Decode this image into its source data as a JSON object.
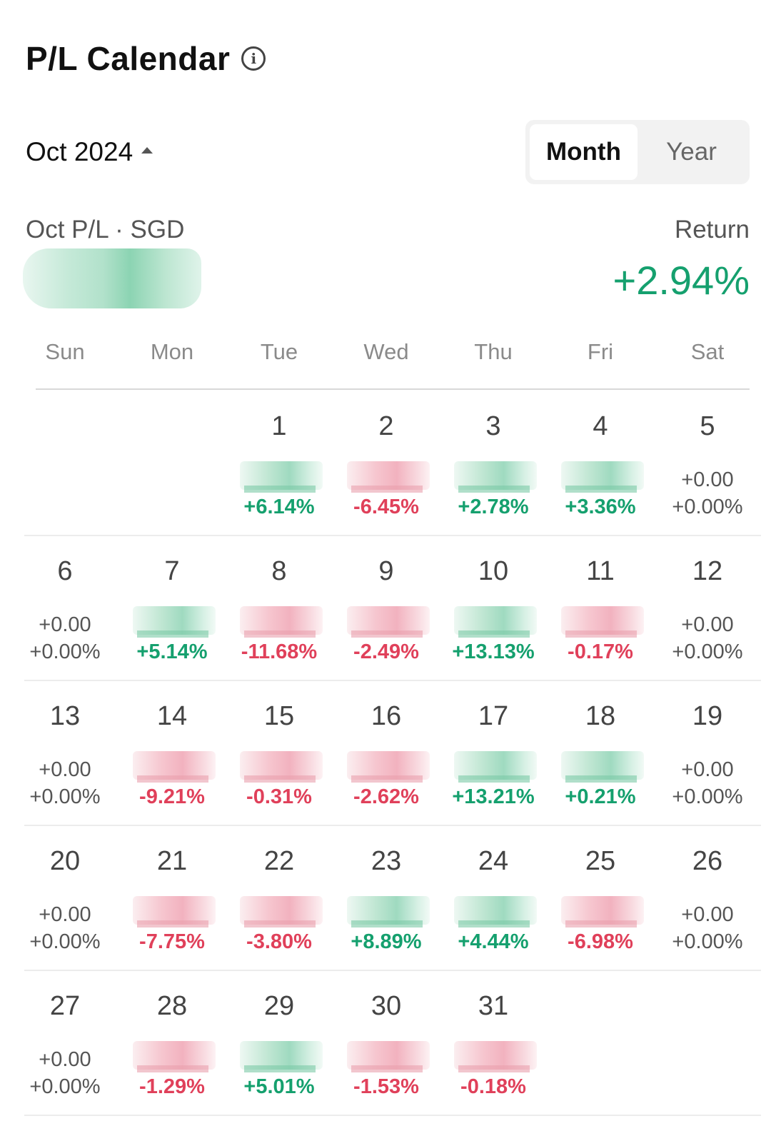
{
  "header": {
    "title": "P/L Calendar",
    "info_icon": "info-icon"
  },
  "controls": {
    "month_label": "Oct 2024",
    "toggle": {
      "month": "Month",
      "year": "Year",
      "selected": "Month"
    }
  },
  "summary": {
    "pl_label": "Oct P/L · SGD",
    "return_label": "Return",
    "return_value": "+2.94%"
  },
  "colors": {
    "positive": "#15a06e",
    "negative": "#e0405a",
    "neutral": "#555555"
  },
  "weekdays": [
    "Sun",
    "Mon",
    "Tue",
    "Wed",
    "Thu",
    "Fri",
    "Sat"
  ],
  "weeks": [
    [
      null,
      null,
      {
        "day": "1",
        "amount": "",
        "pct": "+6.14%",
        "trend": "pos"
      },
      {
        "day": "2",
        "amount": "",
        "pct": "-6.45%",
        "trend": "neg"
      },
      {
        "day": "3",
        "amount": "",
        "pct": "+2.78%",
        "trend": "pos"
      },
      {
        "day": "4",
        "amount": "",
        "pct": "+3.36%",
        "trend": "pos"
      },
      {
        "day": "5",
        "amount": "+0.00",
        "pct": "+0.00%",
        "trend": "zero"
      }
    ],
    [
      {
        "day": "6",
        "amount": "+0.00",
        "pct": "+0.00%",
        "trend": "zero"
      },
      {
        "day": "7",
        "amount": "",
        "pct": "+5.14%",
        "trend": "pos"
      },
      {
        "day": "8",
        "amount": "",
        "pct": "-11.68%",
        "trend": "neg"
      },
      {
        "day": "9",
        "amount": "",
        "pct": "-2.49%",
        "trend": "neg"
      },
      {
        "day": "10",
        "amount": "",
        "pct": "+13.13%",
        "trend": "pos"
      },
      {
        "day": "11",
        "amount": "",
        "pct": "-0.17%",
        "trend": "neg"
      },
      {
        "day": "12",
        "amount": "+0.00",
        "pct": "+0.00%",
        "trend": "zero"
      }
    ],
    [
      {
        "day": "13",
        "amount": "+0.00",
        "pct": "+0.00%",
        "trend": "zero"
      },
      {
        "day": "14",
        "amount": "",
        "pct": "-9.21%",
        "trend": "neg"
      },
      {
        "day": "15",
        "amount": "",
        "pct": "-0.31%",
        "trend": "neg"
      },
      {
        "day": "16",
        "amount": "",
        "pct": "-2.62%",
        "trend": "neg"
      },
      {
        "day": "17",
        "amount": "",
        "pct": "+13.21%",
        "trend": "pos"
      },
      {
        "day": "18",
        "amount": "",
        "pct": "+0.21%",
        "trend": "pos"
      },
      {
        "day": "19",
        "amount": "+0.00",
        "pct": "+0.00%",
        "trend": "zero"
      }
    ],
    [
      {
        "day": "20",
        "amount": "+0.00",
        "pct": "+0.00%",
        "trend": "zero"
      },
      {
        "day": "21",
        "amount": "",
        "pct": "-7.75%",
        "trend": "neg"
      },
      {
        "day": "22",
        "amount": "",
        "pct": "-3.80%",
        "trend": "neg"
      },
      {
        "day": "23",
        "amount": "",
        "pct": "+8.89%",
        "trend": "pos"
      },
      {
        "day": "24",
        "amount": "",
        "pct": "+4.44%",
        "trend": "pos"
      },
      {
        "day": "25",
        "amount": "",
        "pct": "-6.98%",
        "trend": "neg"
      },
      {
        "day": "26",
        "amount": "+0.00",
        "pct": "+0.00%",
        "trend": "zero"
      }
    ],
    [
      {
        "day": "27",
        "amount": "+0.00",
        "pct": "+0.00%",
        "trend": "zero"
      },
      {
        "day": "28",
        "amount": "",
        "pct": "-1.29%",
        "trend": "neg"
      },
      {
        "day": "29",
        "amount": "",
        "pct": "+5.01%",
        "trend": "pos"
      },
      {
        "day": "30",
        "amount": "",
        "pct": "-1.53%",
        "trend": "neg"
      },
      {
        "day": "31",
        "amount": "",
        "pct": "-0.18%",
        "trend": "neg"
      },
      null,
      null
    ]
  ]
}
